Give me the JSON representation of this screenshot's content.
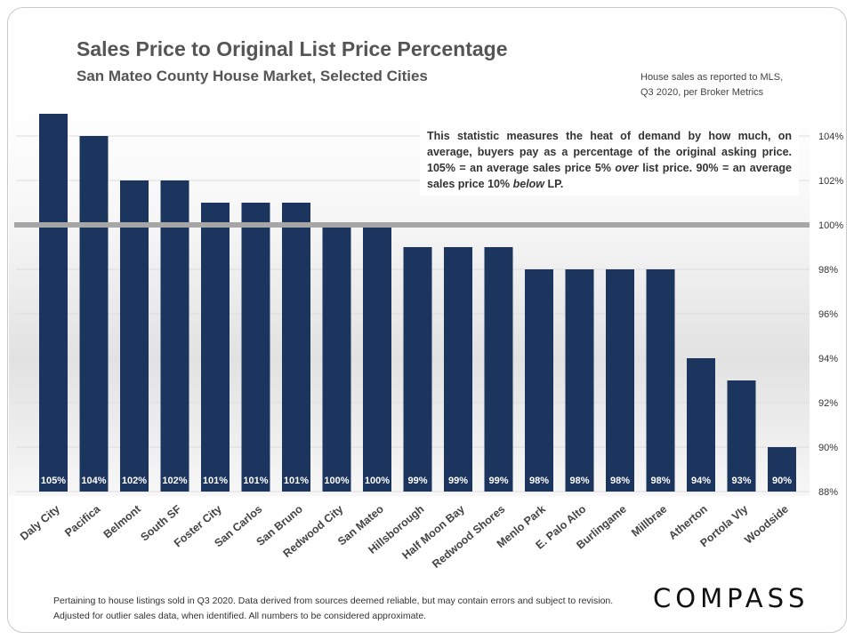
{
  "title": "Sales Price to Original List Price Percentage",
  "subtitle": "San Mateo County House Market, Selected Cities",
  "source_note": [
    "House sales as reported to MLS,",
    "Q3 2020, per Broker Metrics"
  ],
  "annotation": {
    "part1": "This statistic measures the heat of demand by how much, on average, buyers pay as a percentage of the original asking price. 105% = an average sales price 5% ",
    "em1": "over",
    "part2": " list price. 90% = an average sales price 10% ",
    "em2": "below",
    "part3": " LP."
  },
  "footer": "Pertaining to house listings sold in Q3 2020. Data derived from sources deemed reliable, but may contain errors and subject to revision. Adjusted for outlier sales data, when identified. All numbers to be considered approximate.",
  "logo": "COMPASS",
  "colors": {
    "bar": "#1c355e",
    "reference_line": "#a6a6a6",
    "bar_label": "#ffffff"
  },
  "chart_data": {
    "type": "bar",
    "categories": [
      "Daly City",
      "Pacifica",
      "Belmont",
      "South SF",
      "Foster City",
      "San Carlos",
      "San Bruno",
      "Redwood City",
      "San Mateo",
      "Hillsborough",
      "Half Moon Bay",
      "Redwood Shores",
      "Menlo Park",
      "E. Palo Alto",
      "Burlingame",
      "Millbrae",
      "Atherton",
      "Portola Vly",
      "Woodside"
    ],
    "values": [
      105,
      104,
      102,
      102,
      101,
      101,
      101,
      100,
      100,
      99,
      99,
      99,
      98,
      98,
      98,
      98,
      94,
      93,
      90
    ],
    "value_labels": [
      "105%",
      "104%",
      "102%",
      "102%",
      "101%",
      "101%",
      "101%",
      "100%",
      "100%",
      "99%",
      "99%",
      "99%",
      "98%",
      "98%",
      "98%",
      "98%",
      "94%",
      "93%",
      "90%"
    ],
    "y_ticks": [
      88,
      90,
      92,
      94,
      96,
      98,
      100,
      102,
      104
    ],
    "y_tick_labels": [
      "88%",
      "90%",
      "92%",
      "94%",
      "96%",
      "98%",
      "100%",
      "102%",
      "104%"
    ],
    "ylim": [
      88,
      105
    ],
    "reference_line": 100,
    "y_axis_position": "right",
    "grid": true,
    "xlabel": "",
    "ylabel": ""
  }
}
